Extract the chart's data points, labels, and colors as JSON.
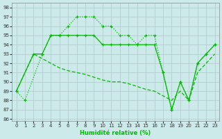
{
  "xlabel": "Humidité relative (%)",
  "xlim": [
    -0.5,
    23.5
  ],
  "ylim": [
    85.8,
    98.5
  ],
  "yticks": [
    86,
    87,
    88,
    89,
    90,
    91,
    92,
    93,
    94,
    95,
    96,
    97,
    98
  ],
  "xticks": [
    0,
    1,
    2,
    3,
    4,
    5,
    6,
    7,
    8,
    9,
    10,
    11,
    12,
    13,
    14,
    15,
    16,
    17,
    18,
    19,
    20,
    21,
    22,
    23
  ],
  "bg_color": "#cdeaea",
  "grid_color": "#b0c8c8",
  "line_color": "#00bb00",
  "s1_x": [
    0,
    1,
    3,
    4,
    5,
    6,
    7,
    8,
    9,
    10,
    11,
    12,
    13,
    14,
    15,
    16,
    17,
    18,
    19,
    20,
    21,
    22,
    23
  ],
  "s1_y": [
    89,
    88,
    93,
    95,
    95,
    96,
    97,
    97,
    97,
    96,
    96,
    95,
    95,
    94,
    95,
    95,
    91,
    87,
    90,
    88,
    92,
    93,
    94
  ],
  "s2_x": [
    0,
    2,
    3,
    4,
    5,
    6,
    7,
    8,
    9,
    10,
    11,
    12,
    13,
    14,
    15,
    16,
    17,
    18,
    19,
    20,
    21,
    22,
    23
  ],
  "s2_y": [
    89,
    93,
    93,
    95,
    95,
    95,
    95,
    95,
    95,
    94,
    94,
    94,
    94,
    94,
    94,
    94,
    91,
    87,
    90,
    88,
    92,
    93,
    94
  ],
  "s3_x": [
    0,
    2,
    3,
    4,
    5,
    6,
    7,
    8,
    9,
    10,
    11,
    12,
    13,
    14,
    15,
    16,
    17,
    18,
    19,
    20,
    21,
    22,
    23
  ],
  "s3_y": [
    89,
    93,
    92.5,
    92,
    91.5,
    91.2,
    91,
    90.8,
    90.5,
    90.2,
    90,
    90,
    89.8,
    89.5,
    89.2,
    89,
    88.5,
    88,
    89,
    88,
    91,
    92,
    93
  ]
}
